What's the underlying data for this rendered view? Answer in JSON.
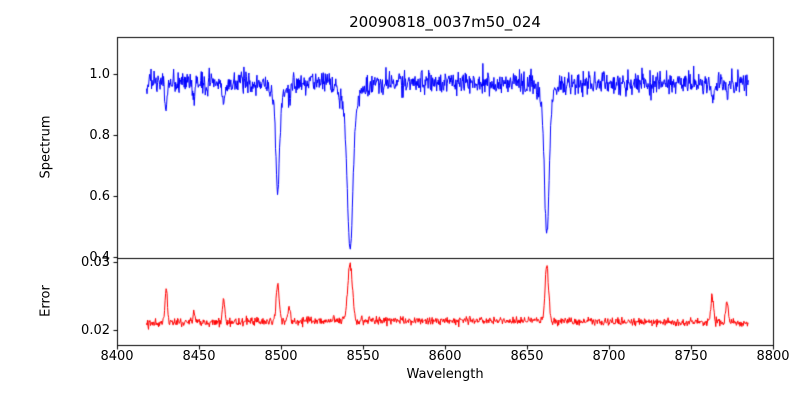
{
  "figure": {
    "background": "#ffffff",
    "axes_color": "#000000"
  },
  "chart_data": {
    "type": "line",
    "title": "20090818_0037m50_024",
    "xlabel": "Wavelength",
    "xlim": [
      8400,
      8800
    ],
    "xtick_values": [
      8400,
      8450,
      8500,
      8550,
      8600,
      8650,
      8700,
      8750,
      8800
    ],
    "xtick_labels": [
      "8400",
      "8450",
      "8500",
      "8550",
      "8600",
      "8650",
      "8700",
      "8750",
      "8800"
    ],
    "x_range_data": [
      8418,
      8785
    ],
    "n_points": 1200,
    "noise_seed": 42,
    "grid": false,
    "legend": "none",
    "subplots": [
      {
        "name": "spectrum",
        "ylabel": "Spectrum",
        "ylim": [
          0.397,
          1.121
        ],
        "ytick_values": [
          0.4,
          0.6,
          0.8,
          1.0
        ],
        "ytick_labels": [
          "0.4",
          "0.6",
          "0.8",
          "1.0"
        ],
        "line_color": "#0000ff",
        "continuum": 0.97,
        "noise_sigma": 0.019,
        "absorption_lines": [
          {
            "center": 8498.0,
            "depth": 0.34,
            "sigma": 1.1
          },
          {
            "center": 8498.0,
            "depth": 0.05,
            "sigma": 4.0
          },
          {
            "center": 8542.1,
            "depth": 0.52,
            "sigma": 1.6
          },
          {
            "center": 8542.1,
            "depth": 0.1,
            "sigma": 5.0
          },
          {
            "center": 8662.1,
            "depth": 0.48,
            "sigma": 1.4
          },
          {
            "center": 8662.1,
            "depth": 0.06,
            "sigma": 4.0
          },
          {
            "center": 8430.0,
            "depth": 0.08,
            "sigma": 0.8
          },
          {
            "center": 8447.0,
            "depth": 0.05,
            "sigma": 0.7
          },
          {
            "center": 8465.0,
            "depth": 0.06,
            "sigma": 0.8
          },
          {
            "center": 8505.0,
            "depth": 0.05,
            "sigma": 0.8
          },
          {
            "center": 8763.0,
            "depth": 0.06,
            "sigma": 0.9
          },
          {
            "center": 8772.0,
            "depth": 0.05,
            "sigma": 0.8
          }
        ]
      },
      {
        "name": "error",
        "ylabel": "Error",
        "ylim": [
          0.0178,
          0.0306
        ],
        "ytick_values": [
          0.02,
          0.03
        ],
        "ytick_labels": [
          "0.02",
          "0.03"
        ],
        "line_color": "#ff0000",
        "baseline": 0.0209,
        "broad_bump": {
          "center": 8590,
          "amp": 0.0005,
          "sigma": 120
        },
        "noise_sigma": 0.0003,
        "peaks": [
          {
            "center": 8430.0,
            "amp": 0.0052,
            "sigma": 0.7
          },
          {
            "center": 8447.0,
            "amp": 0.0013,
            "sigma": 0.7
          },
          {
            "center": 8465.0,
            "amp": 0.0035,
            "sigma": 0.7
          },
          {
            "center": 8498.0,
            "amp": 0.0055,
            "sigma": 0.9
          },
          {
            "center": 8505.0,
            "amp": 0.0022,
            "sigma": 0.7
          },
          {
            "center": 8542.1,
            "amp": 0.0085,
            "sigma": 1.4
          },
          {
            "center": 8662.1,
            "amp": 0.0082,
            "sigma": 1.1
          },
          {
            "center": 8763.0,
            "amp": 0.004,
            "sigma": 0.8
          },
          {
            "center": 8772.0,
            "amp": 0.003,
            "sigma": 0.8
          }
        ]
      }
    ]
  }
}
